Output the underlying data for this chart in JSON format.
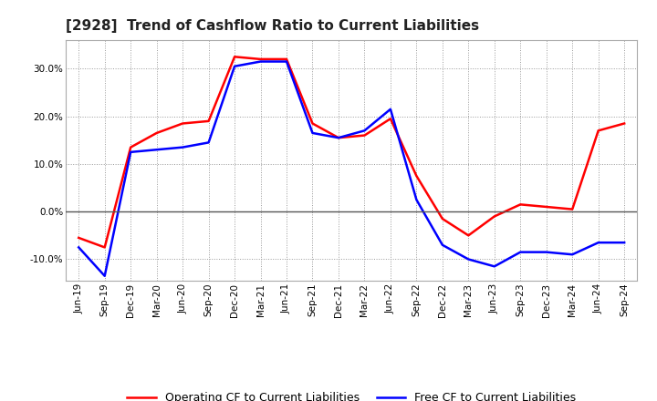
{
  "title": "[2928]  Trend of Cashflow Ratio to Current Liabilities",
  "x_labels": [
    "Jun-19",
    "Sep-19",
    "Dec-19",
    "Mar-20",
    "Jun-20",
    "Sep-20",
    "Dec-20",
    "Mar-21",
    "Jun-21",
    "Sep-21",
    "Dec-21",
    "Mar-22",
    "Jun-22",
    "Sep-22",
    "Dec-22",
    "Mar-23",
    "Jun-23",
    "Sep-23",
    "Dec-23",
    "Mar-24",
    "Jun-24",
    "Sep-24"
  ],
  "operating_cf": [
    -5.5,
    -7.5,
    13.5,
    16.5,
    18.5,
    19.0,
    32.5,
    32.0,
    32.0,
    18.5,
    15.5,
    16.0,
    19.5,
    7.5,
    -1.5,
    -5.0,
    -1.0,
    1.5,
    1.0,
    0.5,
    17.0,
    18.5
  ],
  "free_cf": [
    -7.5,
    -13.5,
    12.5,
    13.0,
    13.5,
    14.5,
    30.5,
    31.5,
    31.5,
    16.5,
    15.5,
    17.0,
    21.5,
    2.5,
    -7.0,
    -10.0,
    -11.5,
    -8.5,
    -8.5,
    -9.0,
    -6.5,
    -6.5
  ],
  "operating_color": "#ff0000",
  "free_color": "#0000ff",
  "ylim": [
    -14.5,
    36.0
  ],
  "yticks": [
    -10.0,
    0.0,
    10.0,
    20.0,
    30.0
  ],
  "background_color": "#ffffff",
  "plot_bg_color": "#ffffff",
  "grid_color": "#999999",
  "zero_line_color": "#555555",
  "title_fontsize": 11,
  "legend_fontsize": 9,
  "tick_fontsize": 7.5,
  "line_width": 1.8
}
